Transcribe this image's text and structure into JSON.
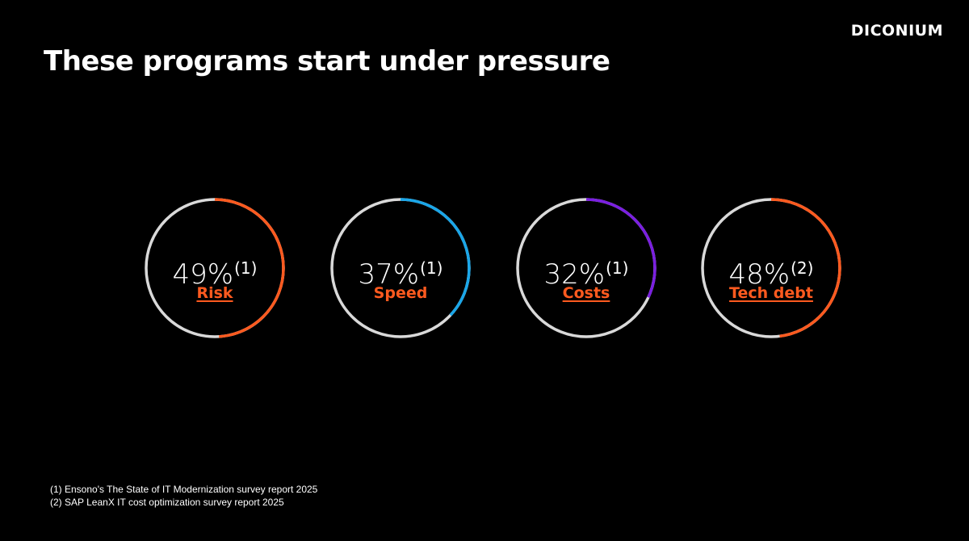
{
  "brand": {
    "logo_text": "DICONIUM"
  },
  "slide": {
    "title": "These programs start under pressure"
  },
  "colors": {
    "ring_track": "#d9d9d9",
    "orange": "#ff5a1f",
    "blue": "#1aa6e8",
    "purple": "#7a1fe0",
    "label": "#ff5a1f",
    "background": "#000000"
  },
  "stats": [
    {
      "value": "49%",
      "footnote": "(1)",
      "label": "Risk",
      "percent": 49,
      "color": "#ff5a1f",
      "underlined": true
    },
    {
      "value": "37%",
      "footnote": "(1)",
      "label": "Speed",
      "percent": 37,
      "color": "#1aa6e8",
      "underlined": false
    },
    {
      "value": "32%",
      "footnote": "(1)",
      "label": "Costs",
      "percent": 32,
      "color": "#7a1fe0",
      "underlined": true
    },
    {
      "value": "48%",
      "footnote": "(2)",
      "label": "Tech debt",
      "percent": 48,
      "color": "#ff5a1f",
      "underlined": true
    }
  ],
  "footnotes": [
    "(1)  Ensono's The State of IT Modernization survey report 2025",
    "(2)  SAP LeanX IT cost optimization survey report 2025"
  ]
}
